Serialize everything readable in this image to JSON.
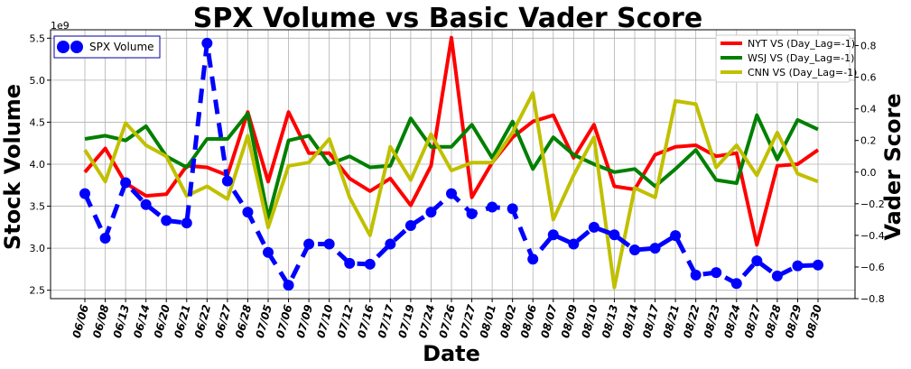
{
  "chart_data": {
    "type": "line",
    "title": "SPX Volume vs Basic Vader Score",
    "xlabel": "Date",
    "ylabel_left": "Stock Volume",
    "ylabel_right": "Vader Score",
    "left_axis_multiplier": "1e9",
    "categories": [
      "06/06",
      "06/08",
      "06/13",
      "06/14",
      "06/20",
      "06/21",
      "06/22",
      "06/27",
      "06/28",
      "07/05",
      "07/06",
      "07/09",
      "07/10",
      "07/12",
      "07/16",
      "07/17",
      "07/19",
      "07/24",
      "07/26",
      "07/27",
      "08/01",
      "08/02",
      "08/06",
      "08/07",
      "08/09",
      "08/10",
      "08/13",
      "08/14",
      "08/17",
      "08/21",
      "08/22",
      "08/23",
      "08/24",
      "08/27",
      "08/28",
      "08/29",
      "08/30"
    ],
    "ylim_left": [
      2.4,
      5.6
    ],
    "yticks_left": [
      "2.5",
      "3.0",
      "3.5",
      "4.0",
      "4.5",
      "5.0",
      "5.5"
    ],
    "ylim_right": [
      -0.8,
      0.9
    ],
    "yticks_right": [
      "−0.8",
      "−0.6",
      "−0.4",
      "−0.2",
      "0.0",
      "0.2",
      "0.4",
      "0.6",
      "0.8"
    ],
    "grid": true,
    "left_legend_placement": "top-left",
    "right_legend_placement": "top-right",
    "series_left": [
      {
        "name": "SPX Volume",
        "color": "#0000ff",
        "style": "dashed-markers",
        "values": [
          3.65,
          3.12,
          3.78,
          3.52,
          3.33,
          3.3,
          5.44,
          3.8,
          3.43,
          2.95,
          2.56,
          3.05,
          3.05,
          2.82,
          2.81,
          3.05,
          3.27,
          3.43,
          3.65,
          3.41,
          3.49,
          3.47,
          2.87,
          3.16,
          3.05,
          3.25,
          3.16,
          2.98,
          3.0,
          3.15,
          2.68,
          2.71,
          2.58,
          2.85,
          2.67,
          2.79,
          2.8
        ]
      }
    ],
    "series_right": [
      {
        "name": "NYT VS (Day_Lag=-1)",
        "color": "#ff0000",
        "values": [
          0.0,
          0.15,
          -0.07,
          -0.15,
          -0.14,
          0.04,
          0.03,
          -0.02,
          0.38,
          -0.06,
          0.38,
          0.12,
          0.12,
          -0.04,
          -0.12,
          -0.04,
          -0.21,
          0.04,
          0.85,
          -0.16,
          0.06,
          0.22,
          0.32,
          0.36,
          0.09,
          0.3,
          -0.09,
          -0.11,
          0.11,
          0.16,
          0.17,
          0.1,
          0.12,
          -0.46,
          0.04,
          0.05,
          0.14
        ]
      },
      {
        "name": "WSJ VS (Day_Lag=-1)",
        "color": "#008000",
        "values": [
          0.21,
          0.23,
          0.2,
          0.29,
          0.1,
          0.03,
          0.21,
          0.21,
          0.37,
          -0.29,
          0.2,
          0.23,
          0.05,
          0.1,
          0.03,
          0.04,
          0.34,
          0.16,
          0.16,
          0.3,
          0.09,
          0.32,
          0.02,
          0.22,
          0.11,
          0.05,
          0.0,
          0.02,
          -0.09,
          0.02,
          0.14,
          -0.05,
          -0.07,
          0.36,
          0.08,
          0.33,
          0.27
        ]
      },
      {
        "name": "CNN VS (Day_Lag=-1)",
        "color": "#c0c000",
        "values": [
          0.14,
          -0.06,
          0.31,
          0.17,
          0.1,
          -0.15,
          -0.09,
          -0.17,
          0.23,
          -0.35,
          0.04,
          0.06,
          0.21,
          -0.16,
          -0.4,
          0.16,
          -0.05,
          0.24,
          0.01,
          0.06,
          0.06,
          0.25,
          0.5,
          -0.3,
          -0.02,
          0.22,
          -0.73,
          -0.1,
          -0.16,
          0.45,
          0.43,
          0.03,
          0.17,
          -0.02,
          0.25,
          -0.01,
          -0.06
        ]
      }
    ]
  }
}
